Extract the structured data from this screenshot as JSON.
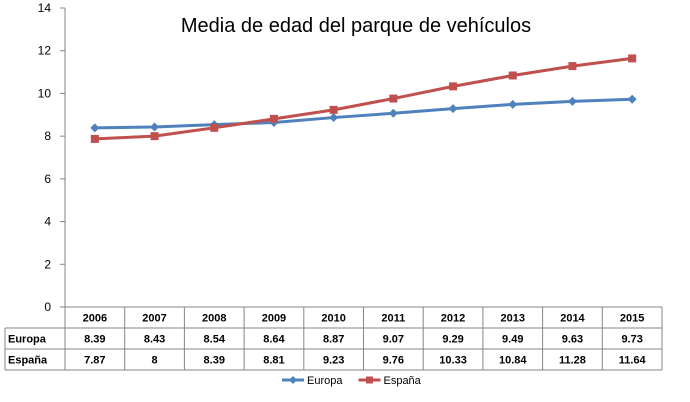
{
  "chart_data": {
    "type": "line",
    "title": "Media de edad del parque de vehículos",
    "categories": [
      "2006",
      "2007",
      "2008",
      "2009",
      "2010",
      "2011",
      "2012",
      "2013",
      "2014",
      "2015"
    ],
    "ylim": [
      0,
      14
    ],
    "yticks": [
      "0",
      "2",
      "4",
      "6",
      "8",
      "10",
      "12",
      "14"
    ],
    "grid": false,
    "legend_position": "bottom",
    "data_table": true,
    "series": [
      {
        "name": "Europa",
        "color": "#4f81bd",
        "marker": "diamond",
        "values": [
          8.39,
          8.43,
          8.54,
          8.64,
          8.87,
          9.07,
          9.29,
          9.49,
          9.63,
          9.73
        ],
        "labels": [
          "8.39",
          "8.43",
          "8.54",
          "8.64",
          "8.87",
          "9.07",
          "9.29",
          "9.49",
          "9.63",
          "9.73"
        ]
      },
      {
        "name": "España",
        "color": "#c0504d",
        "marker": "square",
        "values": [
          7.87,
          8,
          8.39,
          8.81,
          9.23,
          9.76,
          10.33,
          10.84,
          11.28,
          11.64
        ],
        "labels": [
          "7.87",
          "8",
          "8.39",
          "8.81",
          "9.23",
          "9.76",
          "10.33",
          "10.84",
          "11.28",
          "11.64"
        ]
      }
    ]
  }
}
